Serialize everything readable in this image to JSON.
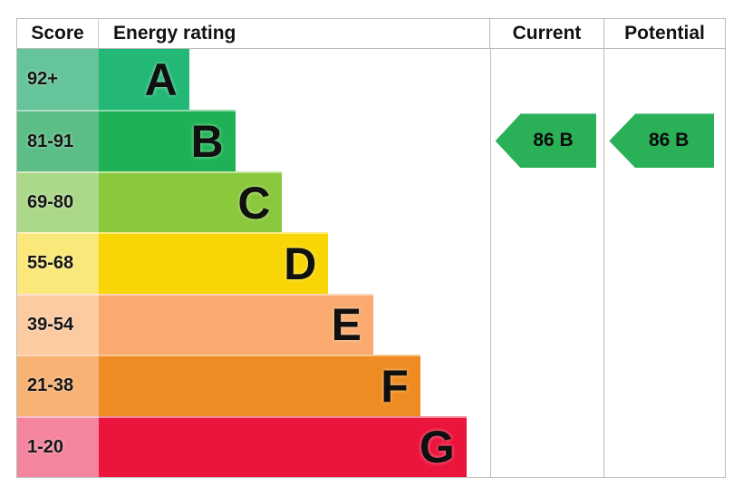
{
  "header": {
    "score": "Score",
    "energy_rating": "Energy rating",
    "current": "Current",
    "potential": "Potential"
  },
  "chart_data": {
    "type": "bar",
    "title": "Energy rating",
    "categories": [
      "A",
      "B",
      "C",
      "D",
      "E",
      "F",
      "G"
    ],
    "bands": [
      {
        "letter": "A",
        "score_range": "92+",
        "bar_color": "#24b877",
        "score_color": "#66c49a",
        "width_pct": 23.1
      },
      {
        "letter": "B",
        "score_range": "81-91",
        "bar_color": "#1fb254",
        "score_color": "#5cbe86",
        "width_pct": 34.9
      },
      {
        "letter": "C",
        "score_range": "69-80",
        "bar_color": "#8ac83c",
        "score_color": "#abd889",
        "width_pct": 46.9
      },
      {
        "letter": "D",
        "score_range": "55-68",
        "bar_color": "#f8d605",
        "score_color": "#fae97a",
        "width_pct": 58.7
      },
      {
        "letter": "E",
        "score_range": "39-54",
        "bar_color": "#faaa6e",
        "score_color": "#fccba2",
        "width_pct": 70.2
      },
      {
        "letter": "F",
        "score_range": "21-38",
        "bar_color": "#ee8c23",
        "score_color": "#f7b274",
        "width_pct": 82.2
      },
      {
        "letter": "G",
        "score_range": "1-20",
        "bar_color": "#eb143c",
        "score_color": "#f5859e",
        "width_pct": 94.0
      }
    ],
    "current": {
      "score": 86,
      "rating": "B",
      "label": "86 B",
      "arrow_color": "#2ab158"
    },
    "potential": {
      "score": 86,
      "rating": "B",
      "label": "86 B",
      "arrow_color": "#2ab158"
    },
    "legend_position": "none",
    "grid": false
  }
}
